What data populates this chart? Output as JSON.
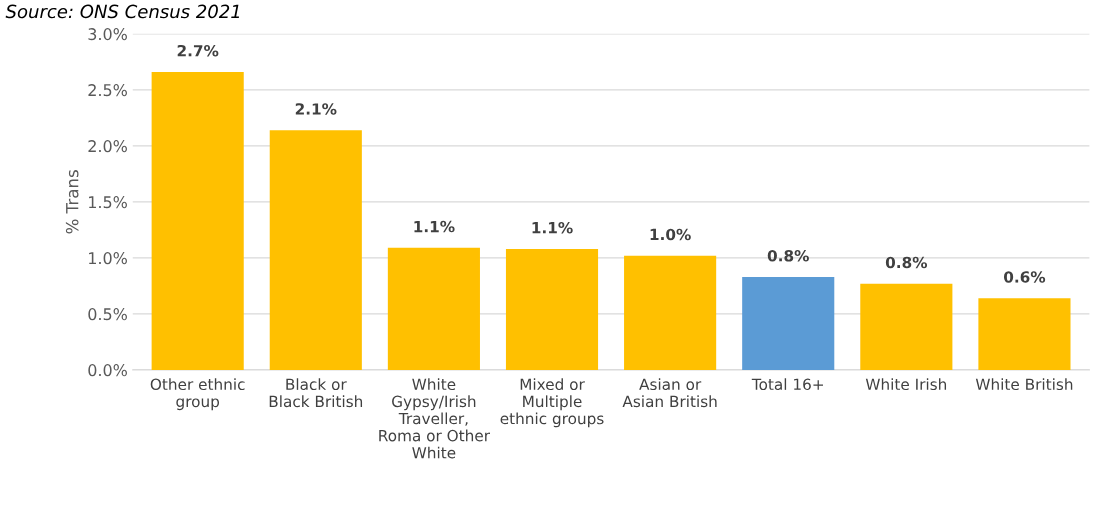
{
  "chart_data": {
    "type": "bar",
    "ylabel": "% Trans",
    "annotations": [
      "Source: ONS Census 2021"
    ],
    "categories": [
      "Other ethnic group",
      "Black or Black British",
      "White Gypsy/Irish Traveller, Roma or Other White",
      "Mixed or Multiple ethnic groups",
      "Asian or Asian British",
      "Total 16+",
      "White Irish",
      "White British"
    ],
    "values": [
      2.66,
      2.14,
      1.09,
      1.08,
      1.02,
      0.83,
      0.77,
      0.64
    ],
    "value_labels": [
      "2.7%",
      "2.1%",
      "1.1%",
      "1.1%",
      "1.0%",
      "0.8%",
      "0.8%",
      "0.6%"
    ],
    "colors": [
      "#ffc000",
      "#ffc000",
      "#ffc000",
      "#ffc000",
      "#ffc000",
      "#5b9bd5",
      "#ffc000",
      "#ffc000"
    ],
    "ylim": [
      0,
      3.0
    ],
    "yticks": [
      {
        "value": 0,
        "label": "0.0%"
      },
      {
        "value": 0.5,
        "label": "0.5%"
      },
      {
        "value": 1.0,
        "label": "1.0%"
      },
      {
        "value": 1.5,
        "label": "1.5%"
      },
      {
        "value": 2.0,
        "label": "2.0%"
      },
      {
        "value": 2.5,
        "label": "2.5%"
      },
      {
        "value": 3.0,
        "label": "3.0%"
      }
    ],
    "grid": "y"
  }
}
